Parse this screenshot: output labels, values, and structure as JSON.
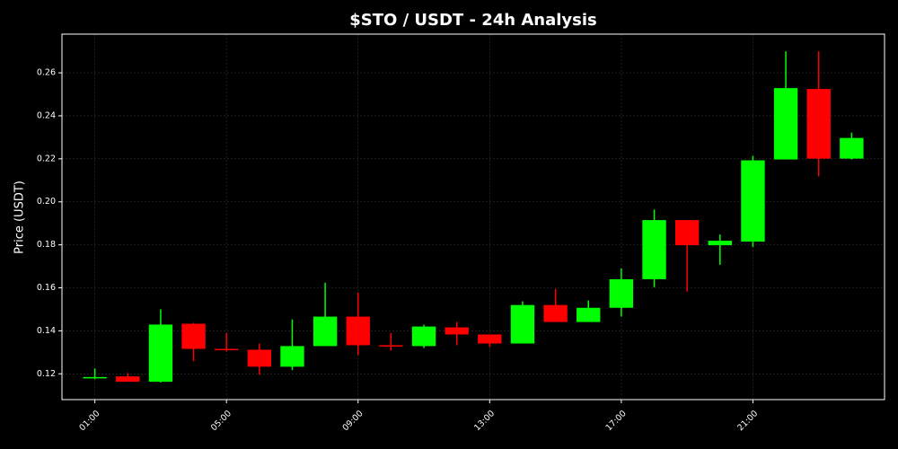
{
  "chart_data": {
    "type": "candlestick",
    "title": "$STO / USDT - 24h Analysis",
    "y_label": "Price (USDT)",
    "categories": [
      "01:00",
      null,
      null,
      null,
      "05:00",
      null,
      null,
      null,
      "09:00",
      null,
      null,
      null,
      "13:00",
      null,
      null,
      null,
      "17:00",
      null,
      null,
      null,
      "21:00",
      null,
      null,
      null
    ],
    "open": [
      0.118,
      0.1188,
      0.1163,
      0.1433,
      0.1316,
      0.1312,
      0.1233,
      0.1329,
      0.1466,
      0.1333,
      0.1329,
      0.1416,
      0.1383,
      0.1341,
      0.152,
      0.1441,
      0.1507,
      0.164,
      0.1915,
      0.1798,
      0.1815,
      0.2197,
      0.2525,
      0.2201
    ],
    "high": [
      0.1225,
      0.1204,
      0.15,
      0.1437,
      0.139,
      0.134,
      0.1453,
      0.1624,
      0.1578,
      0.139,
      0.1428,
      0.1441,
      0.1383,
      0.1537,
      0.1595,
      0.1541,
      0.169,
      0.1964,
      0.1915,
      0.1848,
      0.2214,
      0.27,
      0.27,
      0.2322
    ],
    "low": [
      0.1175,
      0.1163,
      0.116,
      0.1258,
      0.1304,
      0.1196,
      0.1217,
      0.1329,
      0.1287,
      0.1308,
      0.132,
      0.1333,
      0.1325,
      0.1341,
      0.1441,
      0.1441,
      0.1466,
      0.1603,
      0.1582,
      0.1707,
      0.179,
      0.2197,
      0.2118,
      0.2197
    ],
    "close": [
      0.1185,
      0.1163,
      0.1429,
      0.1316,
      0.1312,
      0.1233,
      0.1329,
      0.1466,
      0.1333,
      0.1329,
      0.142,
      0.1383,
      0.1341,
      0.152,
      0.1441,
      0.1507,
      0.164,
      0.1915,
      0.1798,
      0.1819,
      0.2193,
      0.2529,
      0.2201,
      0.2297
    ],
    "up_color": "#00ff00",
    "down_color": "#ff0000",
    "ylim": [
      0.108,
      0.278
    ],
    "yticks": [
      0.12,
      0.14,
      0.16,
      0.18,
      {
        "value": 0.2,
        "label": "0.20"
      },
      0.22,
      0.24,
      0.26
    ],
    "grid": true
  }
}
